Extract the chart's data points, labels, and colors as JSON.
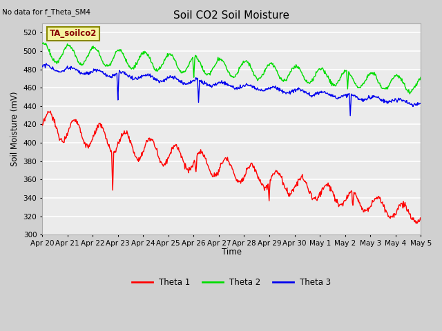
{
  "title": "Soil CO2 Soil Moisture",
  "subtitle": "No data for f_Theta_SM4",
  "ylabel": "Soil Moisture (mV)",
  "xlabel": "Time",
  "annotation": "TA_soilco2",
  "ylim": [
    300,
    530
  ],
  "yticks": [
    300,
    320,
    340,
    360,
    380,
    400,
    420,
    440,
    460,
    480,
    500,
    520
  ],
  "x_labels": [
    "Apr 20",
    "Apr 21",
    "Apr 22",
    "Apr 23",
    "Apr 24",
    "Apr 25",
    "Apr 26",
    "Apr 27",
    "Apr 28",
    "Apr 29",
    "Apr 30",
    "May 1",
    "May 2",
    "May 3",
    "May 4",
    "May 5"
  ],
  "legend": [
    "Theta 1",
    "Theta 2",
    "Theta 3"
  ],
  "colors": {
    "theta1": "#ff0000",
    "theta2": "#00dd00",
    "theta3": "#0000ee"
  },
  "fig_bg": "#d0d0d0",
  "ax_bg": "#ebebeb"
}
